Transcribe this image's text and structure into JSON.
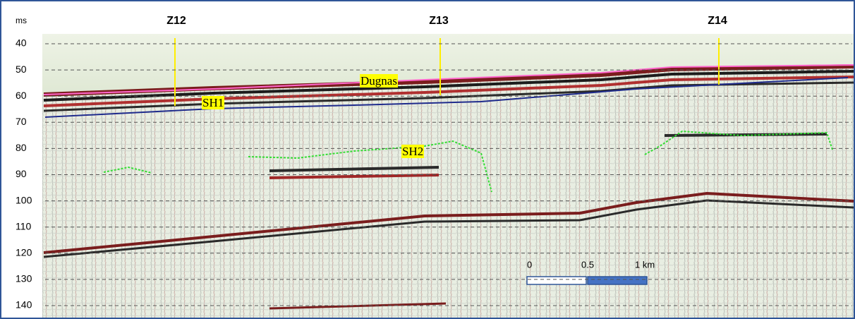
{
  "axis": {
    "unit": "ms",
    "ticks": [
      40,
      50,
      60,
      70,
      80,
      90,
      100,
      110,
      120,
      130,
      140
    ]
  },
  "wells": [
    "Z12",
    "Z13",
    "Z14"
  ],
  "horizons": [
    "Dugnas",
    "SH1",
    "SH2"
  ],
  "scale_bar": [
    "0",
    "0.5",
    "1 km"
  ]
}
